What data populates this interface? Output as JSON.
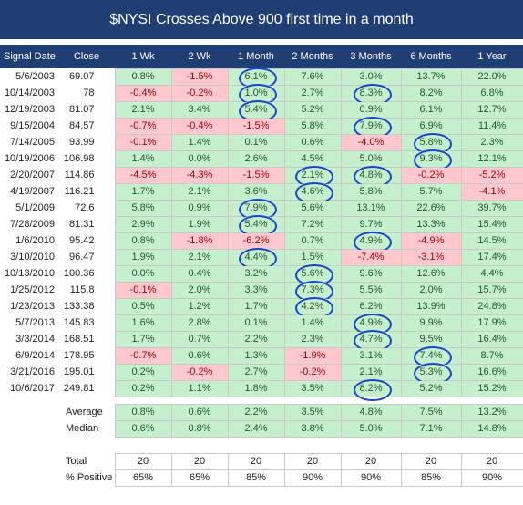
{
  "title": "$NYSI Crosses Above 900 first time in a month",
  "columns": [
    "Signal Date",
    "Close",
    "1 Wk",
    "2 Wk",
    "1 Month",
    "2 Months",
    "3 Months",
    "6 Months",
    "1 Year"
  ],
  "rows": [
    {
      "date": "5/6/2003",
      "close": "69.07",
      "values": [
        "0.8%",
        "-1.5%",
        "6.1%",
        "7.6%",
        "3.0%",
        "13.7%",
        "22.0%"
      ]
    },
    {
      "date": "10/14/2003",
      "close": "78",
      "values": [
        "-0.4%",
        "-0.2%",
        "1.0%",
        "2.7%",
        "8.3%",
        "8.2%",
        "6.8%"
      ]
    },
    {
      "date": "12/19/2003",
      "close": "81.07",
      "values": [
        "2.1%",
        "3.4%",
        "5.4%",
        "5.2%",
        "0.9%",
        "6.1%",
        "12.7%"
      ]
    },
    {
      "date": "9/15/2004",
      "close": "84.57",
      "values": [
        "-0.7%",
        "-0.4%",
        "-1.5%",
        "5.8%",
        "7.9%",
        "6.9%",
        "11.4%"
      ]
    },
    {
      "date": "7/14/2005",
      "close": "93.99",
      "values": [
        "-0.1%",
        "1.4%",
        "0.1%",
        "0.6%",
        "-4.0%",
        "5.8%",
        "2.3%"
      ]
    },
    {
      "date": "10/19/2006",
      "close": "106.98",
      "values": [
        "1.4%",
        "0.0%",
        "2.6%",
        "4.5%",
        "5.0%",
        "9.3%",
        "12.1%"
      ]
    },
    {
      "date": "2/20/2007",
      "close": "114.86",
      "values": [
        "-4.5%",
        "-4.3%",
        "-1.5%",
        "2.1%",
        "4.8%",
        "-0.2%",
        "-5.2%"
      ]
    },
    {
      "date": "4/19/2007",
      "close": "116.21",
      "values": [
        "1.7%",
        "2.1%",
        "3.6%",
        "4.6%",
        "5.8%",
        "5.7%",
        "-4.1%"
      ]
    },
    {
      "date": "5/1/2009",
      "close": "72.6",
      "values": [
        "5.8%",
        "0.9%",
        "7.9%",
        "5.6%",
        "13.1%",
        "22.6%",
        "39.7%"
      ]
    },
    {
      "date": "7/28/2009",
      "close": "81.31",
      "values": [
        "2.9%",
        "1.9%",
        "5.4%",
        "7.2%",
        "9.7%",
        "13.3%",
        "15.4%"
      ]
    },
    {
      "date": "1/6/2010",
      "close": "95.42",
      "values": [
        "0.8%",
        "-1.8%",
        "-6.2%",
        "0.7%",
        "4.9%",
        "-4.9%",
        "14.5%"
      ]
    },
    {
      "date": "3/10/2010",
      "close": "96.47",
      "values": [
        "1.9%",
        "2.1%",
        "4.4%",
        "1.5%",
        "-7.4%",
        "-3.1%",
        "17.4%"
      ]
    },
    {
      "date": "10/13/2010",
      "close": "100.36",
      "values": [
        "0.0%",
        "0.4%",
        "3.2%",
        "5.6%",
        "9.6%",
        "12.6%",
        "4.4%"
      ]
    },
    {
      "date": "1/25/2012",
      "close": "115.8",
      "values": [
        "-0.1%",
        "2.0%",
        "3.3%",
        "7.3%",
        "5.5%",
        "2.0%",
        "15.7%"
      ]
    },
    {
      "date": "1/23/2013",
      "close": "133.38",
      "values": [
        "0.5%",
        "1.2%",
        "1.7%",
        "4.2%",
        "6.2%",
        "13.9%",
        "24.8%"
      ]
    },
    {
      "date": "5/7/2013",
      "close": "145.83",
      "values": [
        "1.6%",
        "2.8%",
        "0.1%",
        "1.4%",
        "4.9%",
        "9.9%",
        "17.9%"
      ]
    },
    {
      "date": "3/3/2014",
      "close": "168.51",
      "values": [
        "1.7%",
        "0.7%",
        "2.2%",
        "2.3%",
        "4.7%",
        "9.5%",
        "16.4%"
      ]
    },
    {
      "date": "6/9/2014",
      "close": "178.95",
      "values": [
        "-0.7%",
        "0.6%",
        "1.3%",
        "-1.9%",
        "3.1%",
        "7.4%",
        "8.7%"
      ]
    },
    {
      "date": "3/21/2016",
      "close": "195.01",
      "values": [
        "0.2%",
        "-0.2%",
        "2.7%",
        "-0.2%",
        "2.1%",
        "5.3%",
        "16.6%"
      ]
    },
    {
      "date": "10/6/2017",
      "close": "249.81",
      "values": [
        "0.2%",
        "1.1%",
        "1.8%",
        "3.5%",
        "8.2%",
        "5.2%",
        "15.2%"
      ]
    }
  ],
  "circled": [
    [
      0,
      2
    ],
    [
      1,
      2
    ],
    [
      2,
      2
    ],
    [
      8,
      2
    ],
    [
      9,
      2
    ],
    [
      11,
      2
    ],
    [
      6,
      3
    ],
    [
      7,
      3
    ],
    [
      12,
      3
    ],
    [
      13,
      3
    ],
    [
      14,
      3
    ],
    [
      1,
      4
    ],
    [
      3,
      4
    ],
    [
      6,
      4
    ],
    [
      10,
      4
    ],
    [
      15,
      4
    ],
    [
      16,
      4
    ],
    [
      19,
      4
    ],
    [
      4,
      5
    ],
    [
      5,
      5
    ],
    [
      17,
      5
    ],
    [
      18,
      5
    ]
  ],
  "summary": [
    {
      "label": "Average",
      "values": [
        "0.8%",
        "0.6%",
        "2.2%",
        "3.5%",
        "4.8%",
        "7.5%",
        "13.2%"
      ]
    },
    {
      "label": "Median",
      "values": [
        "0.6%",
        "0.8%",
        "2.4%",
        "3.8%",
        "5.0%",
        "7.1%",
        "14.8%"
      ]
    }
  ],
  "totals": [
    {
      "label": "Total",
      "values": [
        "20",
        "20",
        "20",
        "20",
        "20",
        "20",
        "20"
      ]
    },
    {
      "label": "% Positive",
      "values": [
        "65%",
        "65%",
        "85%",
        "90%",
        "90%",
        "85%",
        "90%"
      ]
    }
  ],
  "colors": {
    "header": "#1f3e73",
    "positive": "#c6efce",
    "negative": "#ffc7ce",
    "circle": "#1746c9"
  }
}
